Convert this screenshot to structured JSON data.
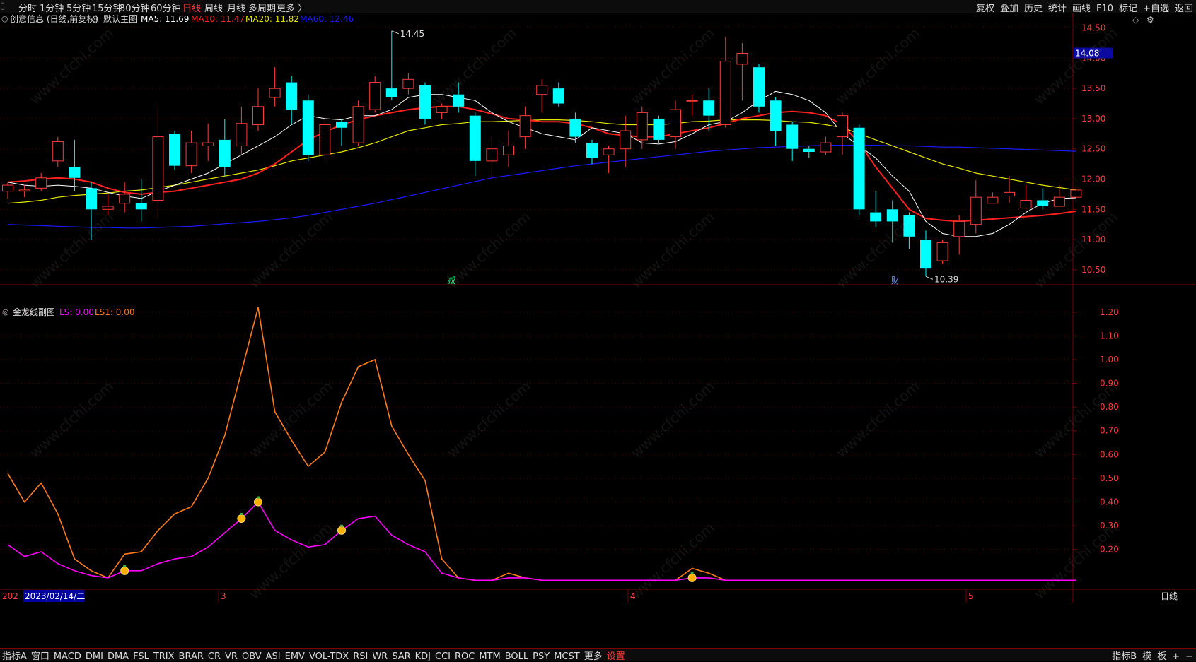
{
  "colors": {
    "background": "#000000",
    "grid": "#7a0000",
    "up": "#ff3b3b",
    "down": "#00ffff",
    "ma5": "#ffffff",
    "ma10": "#ff2020",
    "ma20": "#e6e600",
    "ma60": "#1a1aff",
    "ls": "#ff00ff",
    "ls1": "#ff7a1a",
    "axis_text": "#ff3b3b"
  },
  "topbar": {
    "periods": [
      "分时",
      "1分钟",
      "5分钟",
      "15分钟",
      "30分钟",
      "60分钟",
      "日线",
      "周线",
      "月线",
      "多周期",
      "更多 〉"
    ],
    "active_period": "日线",
    "right_tools": [
      "复权",
      "叠加",
      "历史",
      "统计",
      "画线",
      "F10",
      "标记",
      "+自选",
      "返回"
    ]
  },
  "main": {
    "title": "创意信息 (日线,前复权)",
    "template": "默认主图",
    "ma5_label": "MA5: 11.69",
    "ma10_label": "MA10: 11.47",
    "ma20_label": "MA20: 11.82",
    "ma60_label": "MA60: 12.46",
    "high_label": "14.45",
    "low_label": "10.39",
    "current_price": "14.08",
    "markers": [
      "减",
      "财"
    ]
  },
  "sub": {
    "title": "金龙线副图",
    "ls_label": "LS: 0.00",
    "ls1_label": "LS1: 0.00"
  },
  "bottom": {
    "date_cursor": "2023/02/14/二",
    "date_cut": "202",
    "month_labels": [
      "3",
      "4",
      "5"
    ],
    "period_label": "日线",
    "tabs": [
      "指标A",
      "窗口",
      "MACD",
      "DMI",
      "DMA",
      "FSL",
      "TRIX",
      "BRAR",
      "CR",
      "VR",
      "OBV",
      "ASI",
      "EMV",
      "VOL-TDX",
      "RSI",
      "WR",
      "SAR",
      "KDJ",
      "CCI",
      "ROC",
      "MTM",
      "BOLL",
      "PSY",
      "MCST",
      "更多",
      "设置"
    ],
    "right_tools": [
      "指标B",
      "模",
      "板",
      "+",
      "−"
    ]
  },
  "chart_data": [
    {
      "type": "candlestick",
      "title": "创意信息 (日线,前复权)",
      "ylim": [
        10.3,
        14.6
      ],
      "y_ticks": [
        14.5,
        14.0,
        13.5,
        13.0,
        12.5,
        12.0,
        11.5,
        11.0,
        10.5
      ],
      "candles": [
        [
          11.8,
          11.9,
          11.68,
          11.95
        ],
        [
          11.8,
          11.82,
          11.7,
          11.9
        ],
        [
          11.85,
          12.02,
          11.8,
          12.1
        ],
        [
          12.3,
          12.62,
          12.2,
          12.7
        ],
        [
          12.2,
          12.02,
          11.8,
          12.65
        ],
        [
          11.85,
          11.5,
          11.0,
          11.95
        ],
        [
          11.5,
          11.55,
          11.4,
          11.75
        ],
        [
          11.6,
          11.75,
          11.45,
          11.95
        ],
        [
          11.6,
          11.5,
          11.3,
          12.0
        ],
        [
          11.65,
          12.7,
          11.35,
          13.2
        ],
        [
          12.75,
          12.22,
          12.15,
          12.8
        ],
        [
          12.22,
          12.6,
          12.1,
          12.8
        ],
        [
          12.55,
          12.6,
          12.3,
          12.92
        ],
        [
          12.65,
          12.2,
          12.05,
          13.0
        ],
        [
          12.55,
          12.92,
          12.4,
          13.2
        ],
        [
          12.9,
          13.2,
          12.8,
          13.5
        ],
        [
          13.35,
          13.5,
          13.2,
          13.85
        ],
        [
          13.6,
          13.15,
          12.9,
          13.7
        ],
        [
          13.3,
          12.4,
          12.3,
          13.4
        ],
        [
          12.4,
          12.9,
          12.3,
          13.0
        ],
        [
          12.95,
          12.85,
          12.55,
          13.0
        ],
        [
          12.6,
          13.2,
          12.55,
          13.3
        ],
        [
          13.15,
          13.6,
          13.1,
          13.7
        ],
        [
          13.5,
          13.35,
          13.3,
          14.45
        ],
        [
          13.5,
          13.65,
          13.4,
          13.75
        ],
        [
          13.55,
          13.0,
          12.9,
          13.6
        ],
        [
          13.1,
          13.2,
          13.0,
          13.25
        ],
        [
          13.4,
          13.2,
          13.1,
          13.6
        ],
        [
          13.05,
          12.3,
          12.05,
          13.1
        ],
        [
          12.3,
          12.5,
          12.0,
          12.7
        ],
        [
          12.4,
          12.55,
          12.2,
          12.8
        ],
        [
          12.7,
          13.05,
          12.5,
          13.2
        ],
        [
          13.4,
          13.55,
          13.1,
          13.65
        ],
        [
          13.5,
          13.25,
          13.2,
          13.6
        ],
        [
          13.0,
          12.7,
          12.6,
          13.1
        ],
        [
          12.6,
          12.35,
          12.25,
          12.65
        ],
        [
          12.4,
          12.5,
          12.1,
          12.55
        ],
        [
          12.5,
          12.8,
          12.2,
          13.05
        ],
        [
          12.65,
          13.1,
          12.5,
          13.2
        ],
        [
          13.0,
          12.65,
          12.6,
          13.05
        ],
        [
          12.7,
          13.15,
          12.5,
          13.3
        ],
        [
          13.3,
          13.3,
          13.05,
          13.4
        ],
        [
          13.3,
          13.05,
          12.8,
          13.5
        ],
        [
          12.9,
          13.95,
          12.85,
          14.35
        ],
        [
          13.9,
          14.08,
          13.3,
          14.25
        ],
        [
          13.85,
          13.2,
          13.1,
          13.9
        ],
        [
          13.3,
          12.8,
          12.55,
          13.35
        ],
        [
          12.9,
          12.5,
          12.3,
          12.95
        ],
        [
          12.5,
          12.45,
          12.35,
          12.55
        ],
        [
          12.45,
          12.6,
          12.4,
          12.7
        ],
        [
          12.7,
          13.05,
          12.4,
          13.1
        ],
        [
          12.85,
          11.5,
          11.4,
          12.9
        ],
        [
          11.45,
          11.3,
          11.2,
          11.8
        ],
        [
          11.5,
          11.3,
          10.95,
          11.65
        ],
        [
          11.4,
          11.05,
          10.85,
          11.45
        ],
        [
          11.0,
          10.52,
          10.39,
          11.15
        ],
        [
          10.65,
          10.95,
          10.6,
          11.0
        ],
        [
          11.05,
          11.3,
          10.75,
          11.4
        ],
        [
          11.25,
          11.7,
          11.1,
          11.98
        ],
        [
          11.6,
          11.7,
          11.6,
          11.78
        ],
        [
          11.72,
          11.78,
          11.6,
          12.05
        ],
        [
          11.52,
          11.65,
          11.5,
          11.9
        ],
        [
          11.65,
          11.55,
          11.5,
          11.85
        ],
        [
          11.55,
          11.7,
          11.55,
          11.9
        ],
        [
          11.7,
          11.82,
          11.62,
          11.9
        ]
      ],
      "ma5": [
        11.95,
        11.9,
        11.88,
        11.9,
        11.88,
        11.85,
        11.78,
        11.72,
        11.68,
        11.8,
        11.9,
        12.0,
        12.1,
        12.25,
        12.4,
        12.55,
        12.7,
        12.9,
        13.05,
        13.0,
        12.98,
        13.05,
        13.05,
        13.15,
        13.35,
        13.4,
        13.4,
        13.35,
        13.3,
        13.1,
        12.95,
        12.85,
        12.75,
        12.7,
        12.65,
        12.85,
        12.8,
        12.75,
        12.6,
        12.58,
        12.62,
        12.75,
        12.9,
        12.95,
        13.1,
        13.3,
        13.45,
        13.4,
        13.3,
        13.1,
        12.75,
        12.55,
        12.35,
        12.05,
        11.8,
        11.3,
        11.1,
        11.05,
        11.05,
        11.1,
        11.25,
        11.45,
        11.6,
        11.68,
        11.69
      ],
      "ma10": [
        11.95,
        11.97,
        12.0,
        12.02,
        12.0,
        11.95,
        11.85,
        11.78,
        11.75,
        11.78,
        11.8,
        11.85,
        11.9,
        11.95,
        12.0,
        12.1,
        12.25,
        12.45,
        12.65,
        12.78,
        12.9,
        12.98,
        13.05,
        13.1,
        13.15,
        13.18,
        13.2,
        13.2,
        13.15,
        13.08,
        13.0,
        12.98,
        12.95,
        12.95,
        12.92,
        12.85,
        12.75,
        12.72,
        12.7,
        12.7,
        12.75,
        12.8,
        12.85,
        12.92,
        13.0,
        13.05,
        13.1,
        13.12,
        13.1,
        13.05,
        12.9,
        12.6,
        12.2,
        11.85,
        11.5,
        11.35,
        11.32,
        11.3,
        11.32,
        11.34,
        11.36,
        11.38,
        11.4,
        11.43,
        11.47
      ],
      "ma20": [
        11.6,
        11.62,
        11.65,
        11.7,
        11.73,
        11.75,
        11.77,
        11.8,
        11.82,
        11.86,
        11.9,
        11.95,
        12.0,
        12.05,
        12.1,
        12.15,
        12.22,
        12.3,
        12.35,
        12.4,
        12.45,
        12.52,
        12.6,
        12.7,
        12.8,
        12.85,
        12.9,
        12.92,
        12.95,
        12.95,
        12.96,
        12.97,
        12.98,
        12.98,
        12.97,
        12.95,
        12.92,
        12.9,
        12.9,
        12.9,
        12.92,
        12.95,
        12.96,
        12.98,
        12.98,
        12.98,
        12.97,
        12.95,
        12.94,
        12.9,
        12.85,
        12.75,
        12.65,
        12.55,
        12.45,
        12.35,
        12.25,
        12.18,
        12.1,
        12.05,
        12.0,
        11.95,
        11.9,
        11.86,
        11.82
      ],
      "ma60": [
        11.25,
        11.24,
        11.23,
        11.22,
        11.21,
        11.2,
        11.2,
        11.19,
        11.19,
        11.2,
        11.21,
        11.22,
        11.24,
        11.26,
        11.28,
        11.3,
        11.33,
        11.36,
        11.4,
        11.45,
        11.5,
        11.55,
        11.6,
        11.66,
        11.72,
        11.78,
        11.84,
        11.9,
        11.96,
        12.02,
        12.06,
        12.1,
        12.14,
        12.18,
        12.22,
        12.25,
        12.28,
        12.31,
        12.34,
        12.37,
        12.4,
        12.43,
        12.46,
        12.48,
        12.5,
        12.52,
        12.53,
        12.54,
        12.55,
        12.56,
        12.56,
        12.56,
        12.56,
        12.55,
        12.55,
        12.54,
        12.53,
        12.53,
        12.52,
        12.51,
        12.5,
        12.49,
        12.48,
        12.47,
        12.46
      ]
    },
    {
      "type": "line",
      "title": "金龙线副图",
      "ylim": [
        0.05,
        1.25
      ],
      "y_ticks": [
        1.2,
        1.1,
        1.0,
        0.9,
        0.8,
        0.7,
        0.6,
        0.5,
        0.4,
        0.3,
        0.2
      ],
      "series": [
        {
          "name": "LS1",
          "values": [
            0.52,
            0.4,
            0.48,
            0.35,
            0.16,
            0.11,
            0.08,
            0.18,
            0.19,
            0.28,
            0.35,
            0.38,
            0.5,
            0.68,
            0.95,
            1.22,
            0.78,
            0.66,
            0.55,
            0.61,
            0.82,
            0.97,
            1.0,
            0.72,
            0.6,
            0.49,
            0.16,
            0.08,
            0.07,
            0.07,
            0.1,
            0.08,
            0.07,
            0.07,
            0.07,
            0.07,
            0.07,
            0.07,
            0.07,
            0.07,
            0.07,
            0.12,
            0.1,
            0.07,
            0.07,
            0.07,
            0.07,
            0.07,
            0.07,
            0.07,
            0.07,
            0.07,
            0.07,
            0.07,
            0.07,
            0.07,
            0.07,
            0.07,
            0.07,
            0.07,
            0.07,
            0.07,
            0.07,
            0.07,
            0.07
          ]
        },
        {
          "name": "LS",
          "values": [
            0.22,
            0.17,
            0.19,
            0.14,
            0.11,
            0.09,
            0.08,
            0.11,
            0.11,
            0.14,
            0.16,
            0.17,
            0.21,
            0.27,
            0.33,
            0.4,
            0.28,
            0.24,
            0.21,
            0.22,
            0.28,
            0.33,
            0.34,
            0.26,
            0.22,
            0.19,
            0.1,
            0.08,
            0.07,
            0.07,
            0.08,
            0.08,
            0.07,
            0.07,
            0.07,
            0.07,
            0.07,
            0.07,
            0.07,
            0.07,
            0.07,
            0.08,
            0.08,
            0.07,
            0.07,
            0.07,
            0.07,
            0.07,
            0.07,
            0.07,
            0.07,
            0.07,
            0.07,
            0.07,
            0.07,
            0.07,
            0.07,
            0.07,
            0.07,
            0.07,
            0.07,
            0.07,
            0.07,
            0.07,
            0.07
          ]
        }
      ],
      "signal_markers": [
        7,
        14,
        15,
        20,
        41
      ]
    }
  ]
}
